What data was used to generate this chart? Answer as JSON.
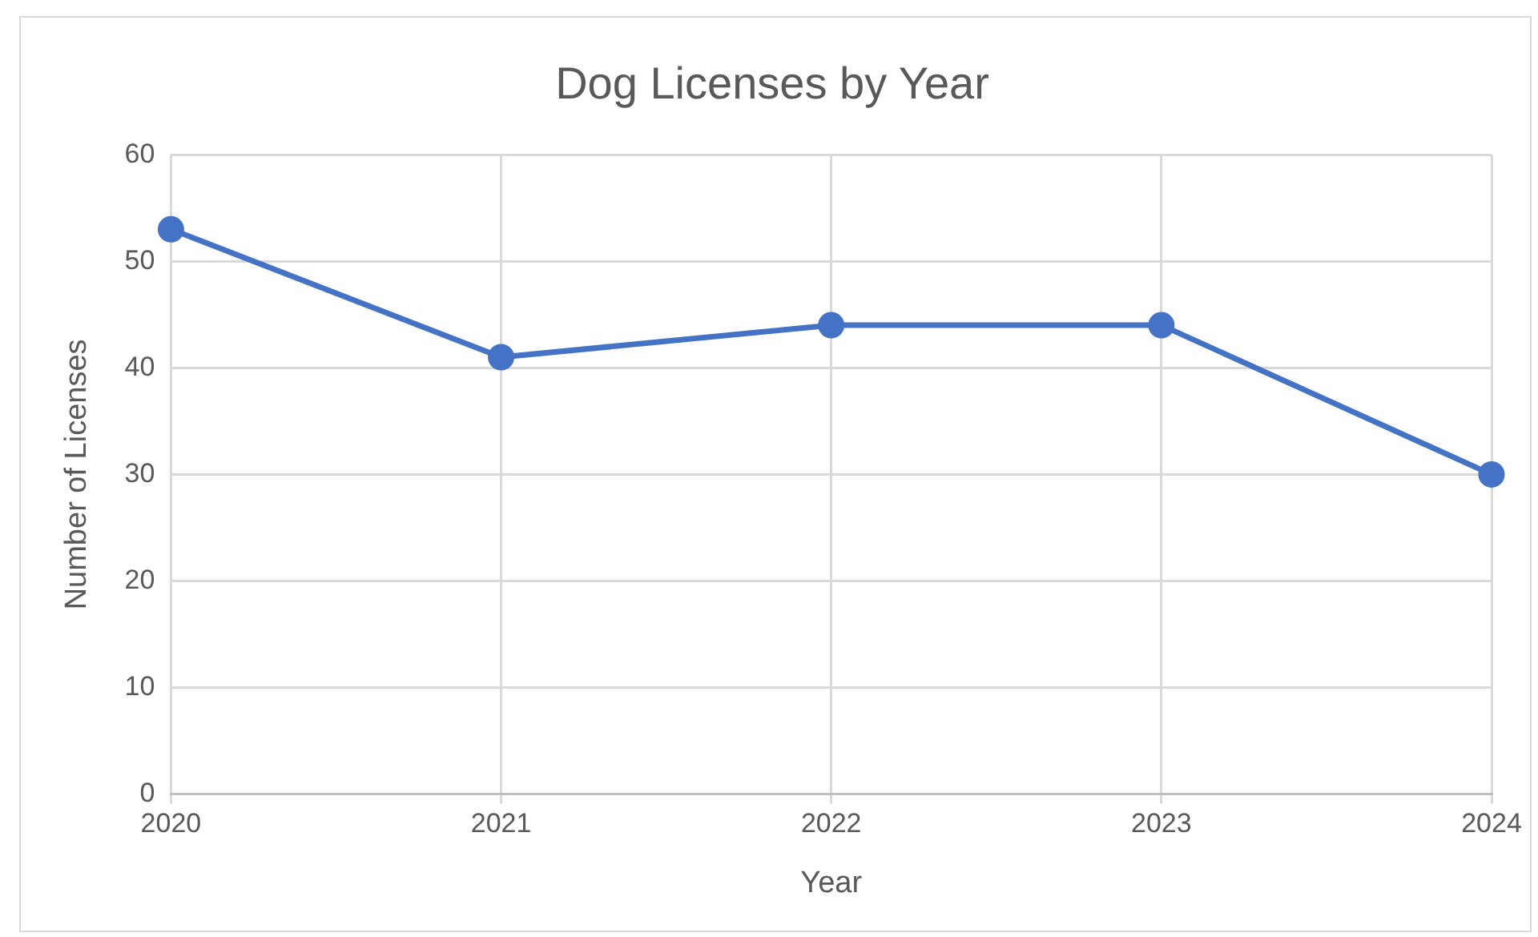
{
  "chart_data": {
    "type": "line",
    "title": "Dog Licenses by Year",
    "xlabel": "Year",
    "ylabel": "Number of Licenses",
    "categories": [
      "2020",
      "2021",
      "2022",
      "2023",
      "2024"
    ],
    "series": [
      {
        "color": "#4472c4",
        "values": [
          53,
          41,
          44,
          44,
          30
        ]
      }
    ],
    "ylim": [
      0,
      60
    ],
    "yticks": [
      0,
      10,
      20,
      30,
      40,
      50,
      60
    ],
    "grid": true,
    "legend": false,
    "marker": "circle",
    "line_style": "solid"
  }
}
